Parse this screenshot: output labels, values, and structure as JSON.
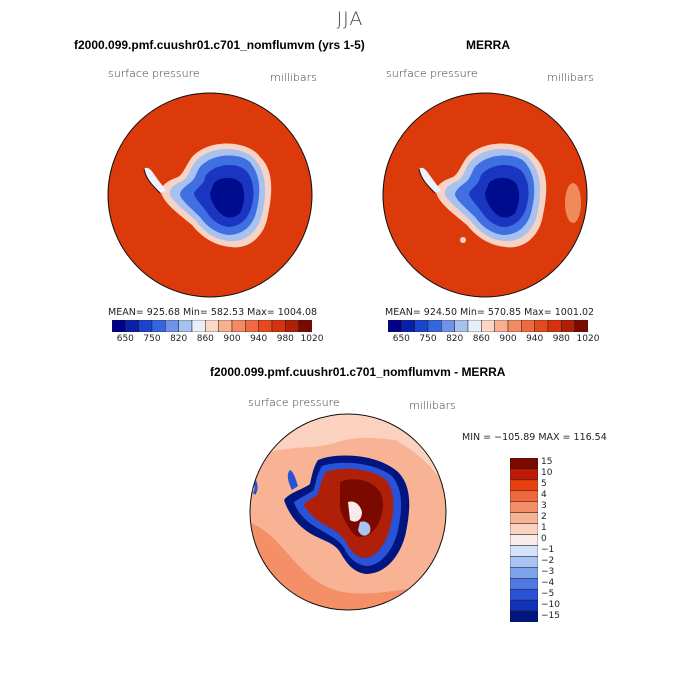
{
  "figure": {
    "title": "JJA"
  },
  "panel_left": {
    "title": "f2000.099.pmf.cuushr01.c701_nomflumvm (yrs 1-5)",
    "variable": "surface pressure",
    "units": "millibars",
    "stats": "MEAN= 925.68   Min= 582.53   Max= 1004.08"
  },
  "panel_right": {
    "title": "MERRA",
    "variable": "surface pressure",
    "units": "millibars",
    "stats": "MEAN= 924.50   Min= 570.85   Max= 1001.02"
  },
  "panel_diff": {
    "title": "f2000.099.pmf.cuushr01.c701_nomflumvm - MERRA",
    "variable": "surface pressure",
    "units": "millibars",
    "stats": "MIN = −105.89  MAX = 116.54"
  },
  "colorbar_abs": {
    "colors": [
      "#00008b",
      "#0a1fa8",
      "#1a44cc",
      "#3366e0",
      "#6f93e8",
      "#a8c2f0",
      "#e8eefa",
      "#fbd8c6",
      "#f8b08e",
      "#f48a62",
      "#ef6a40",
      "#e54a1e",
      "#d63210",
      "#b01f08",
      "#7a0a00"
    ],
    "ticks": [
      "650",
      "750",
      "820",
      "860",
      "900",
      "940",
      "980",
      "1020"
    ]
  },
  "colorbar_diff": {
    "colors": [
      "#7a0a00",
      "#c01a06",
      "#e8400f",
      "#f0683d",
      "#f48f68",
      "#f8b294",
      "#fbd2bf",
      "#f7ecea",
      "#d5e3f8",
      "#a9c4f2",
      "#7ea3ec",
      "#4f78e2",
      "#2a52d6",
      "#1032b8",
      "#00157f"
    ],
    "ticks": [
      "15",
      "10",
      "5",
      "4",
      "3",
      "2",
      "1",
      "0",
      "−1",
      "−2",
      "−3",
      "−4",
      "−5",
      "−10",
      "−15"
    ]
  }
}
